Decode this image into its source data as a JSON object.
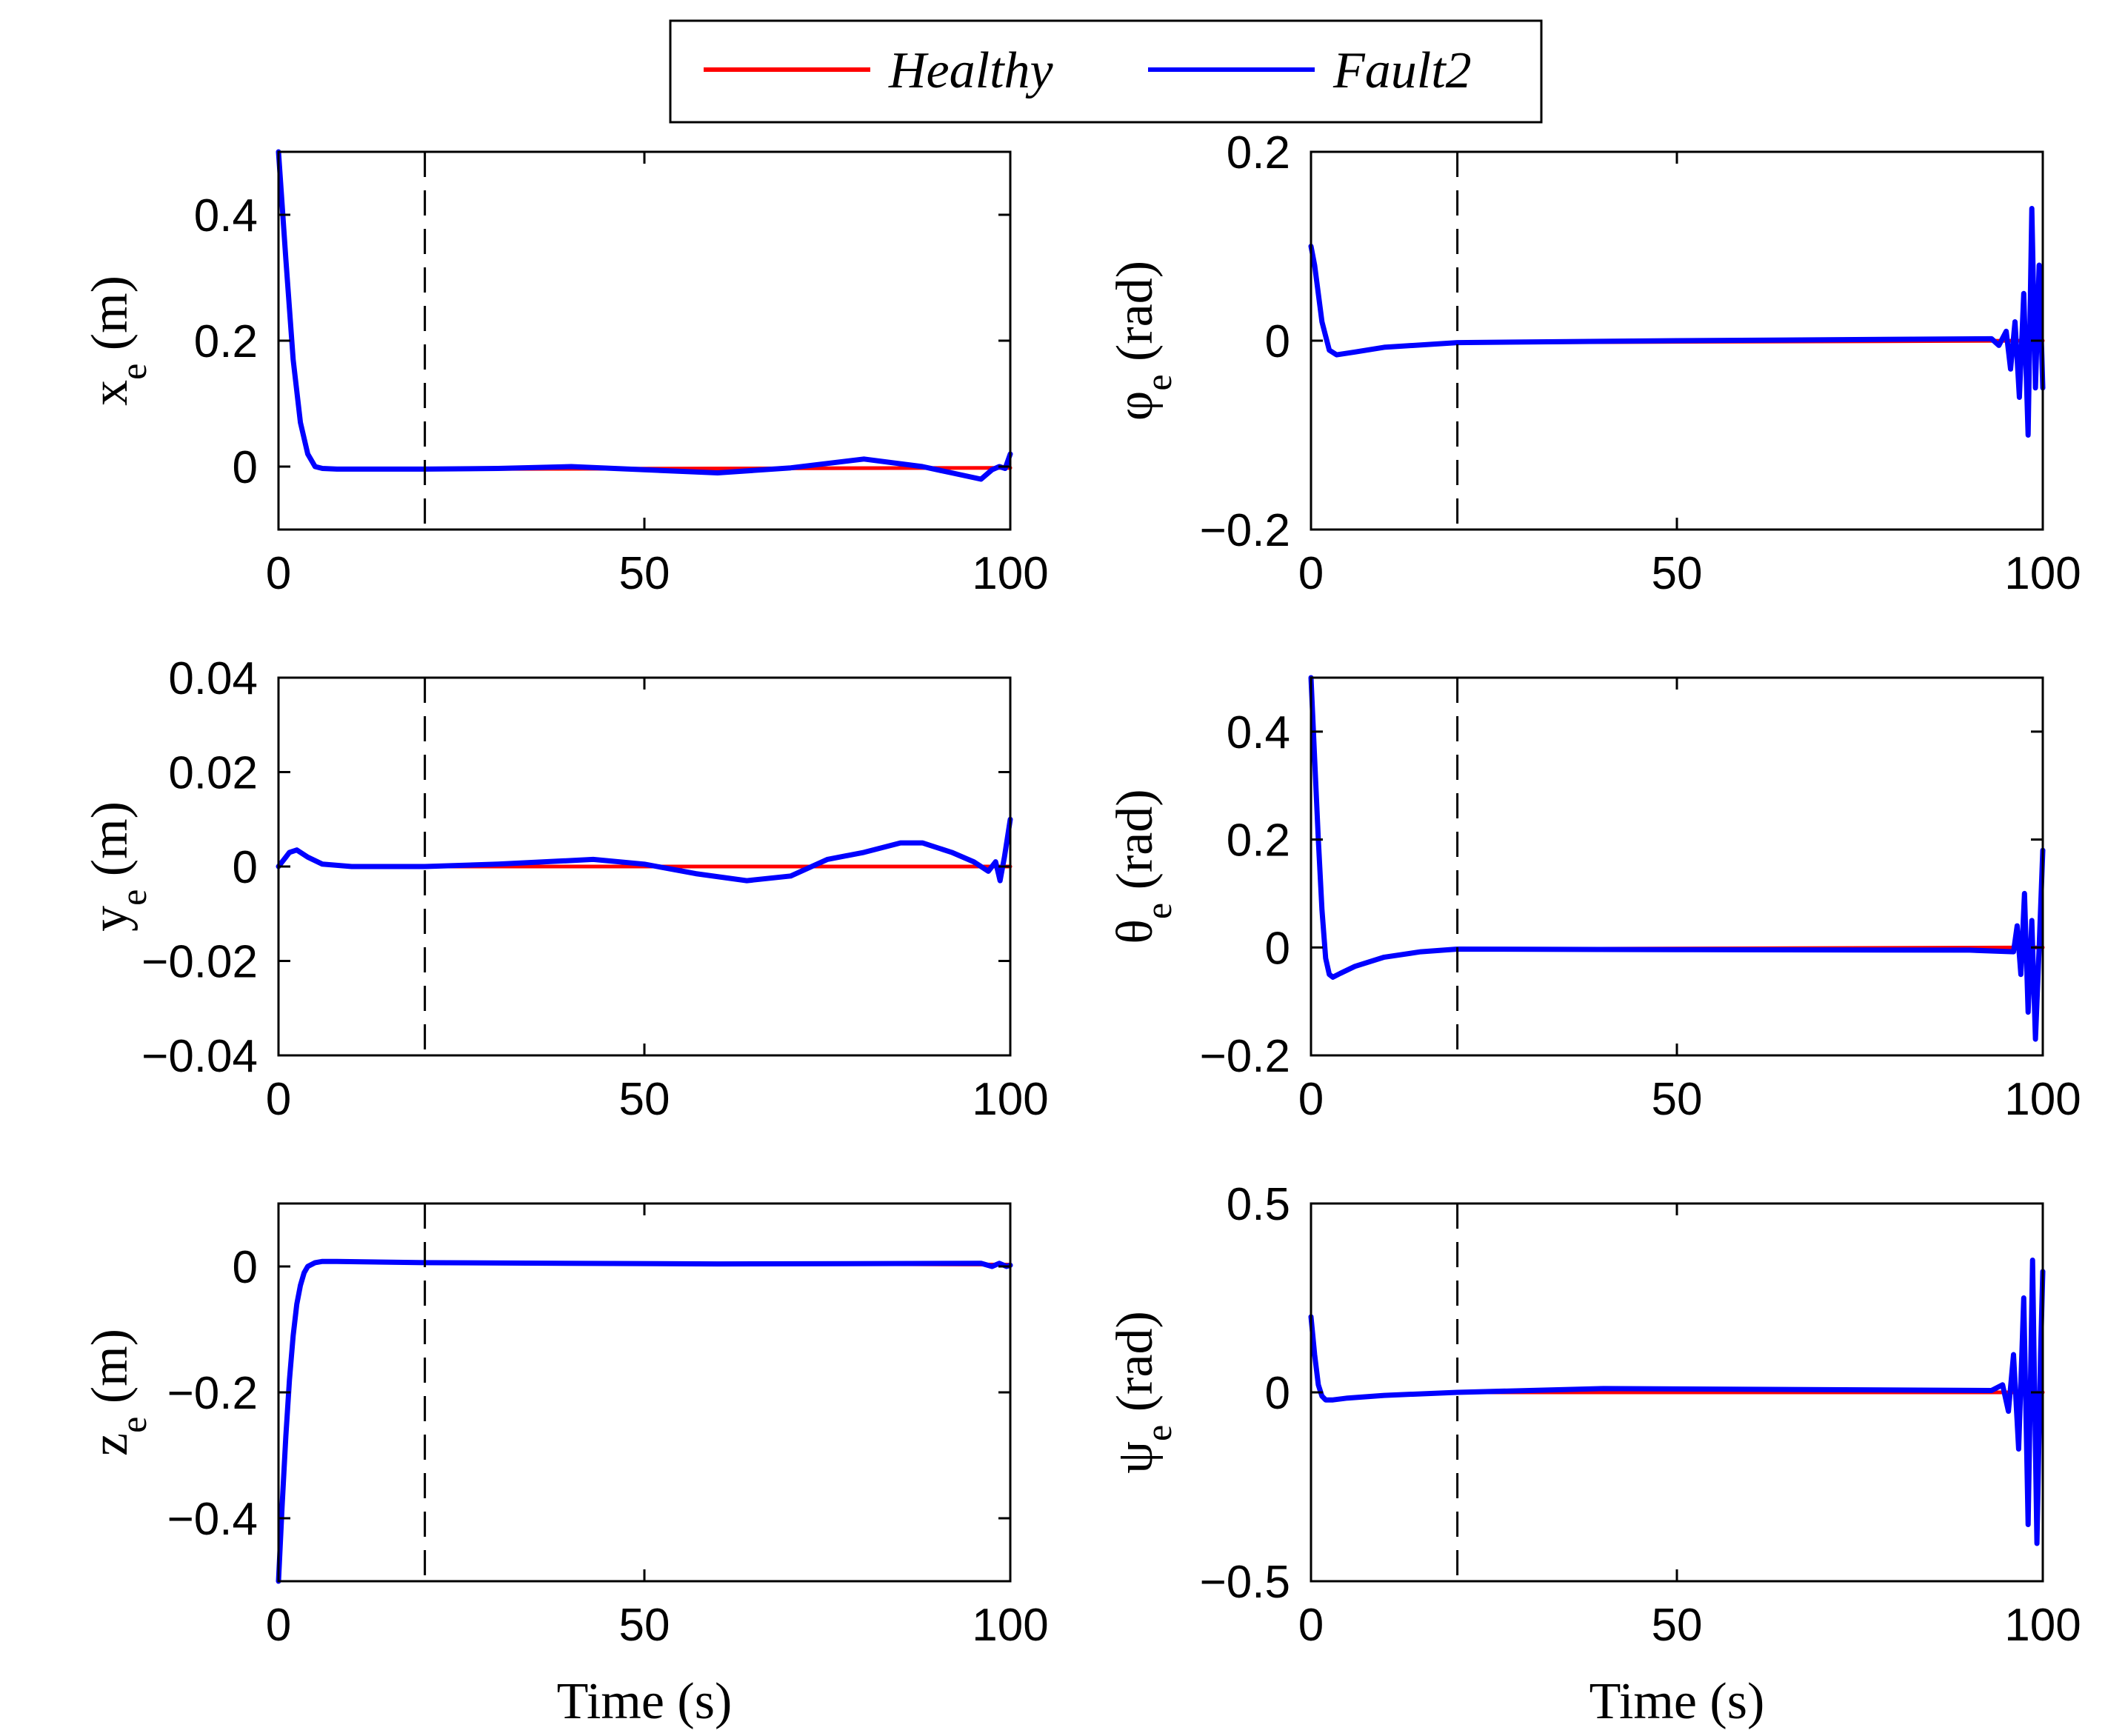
{
  "legend": {
    "entries": [
      {
        "label": "Healthy",
        "color": "#ff0000"
      },
      {
        "label": "Fault2",
        "color": "#0000ff"
      }
    ]
  },
  "chart_data": [
    {
      "id": "xe",
      "type": "line",
      "ylabel": "x",
      "ylabel_sub": "e",
      "ylabel_unit": " (m)",
      "xlabel": "",
      "xlim": [
        0,
        100
      ],
      "ylim": [
        -0.1,
        0.5
      ],
      "xticks": [
        0,
        50,
        100
      ],
      "xtick_labels": [
        "0",
        "50",
        "100"
      ],
      "yticks": [
        0,
        0.2,
        0.4
      ],
      "ytick_labels": [
        "0",
        "0.2",
        "0.4"
      ],
      "fault_time": 20,
      "series": [
        {
          "name": "Healthy",
          "color": "#ff0000",
          "x": [
            0,
            1,
            2,
            3,
            4,
            5,
            6,
            8,
            10,
            20,
            100
          ],
          "y": [
            0.5,
            0.33,
            0.17,
            0.07,
            0.02,
            0.0,
            -0.003,
            -0.004,
            -0.004,
            -0.004,
            -0.002
          ]
        },
        {
          "name": "Fault2",
          "color": "#0000ff",
          "x": [
            0,
            1,
            2,
            3,
            4,
            5,
            6,
            8,
            10,
            20,
            30,
            40,
            50,
            60,
            70,
            80,
            88,
            92,
            96,
            97.5,
            98.5,
            99.3,
            100
          ],
          "y": [
            0.5,
            0.33,
            0.17,
            0.07,
            0.02,
            0.0,
            -0.003,
            -0.004,
            -0.004,
            -0.004,
            -0.003,
            0.0,
            -0.005,
            -0.01,
            -0.002,
            0.012,
            0.0,
            -0.01,
            -0.02,
            -0.005,
            0.0,
            -0.003,
            0.02
          ]
        }
      ]
    },
    {
      "id": "phie",
      "type": "line",
      "ylabel": "φ",
      "ylabel_sub": "e",
      "ylabel_unit": " (rad)",
      "xlabel": "",
      "xlim": [
        0,
        100
      ],
      "ylim": [
        -0.2,
        0.2
      ],
      "xticks": [
        0,
        50,
        100
      ],
      "xtick_labels": [
        "0",
        "50",
        "100"
      ],
      "yticks": [
        -0.2,
        0,
        0.2
      ],
      "ytick_labels": [
        "−0.2",
        "0",
        "0.2"
      ],
      "fault_time": 20,
      "series": [
        {
          "name": "Healthy",
          "color": "#ff0000",
          "x": [
            0,
            0.5,
            1.5,
            2.5,
            3.5,
            6,
            10,
            20,
            100
          ],
          "y": [
            0.1,
            0.08,
            0.02,
            -0.01,
            -0.015,
            -0.012,
            -0.007,
            -0.002,
            0.0
          ]
        },
        {
          "name": "Fault2",
          "color": "#0000ff",
          "x": [
            0,
            0.5,
            1.5,
            2.5,
            3.5,
            6,
            10,
            20,
            50,
            93,
            94,
            95,
            95.6,
            96.2,
            96.8,
            97.4,
            98,
            98.5,
            99,
            99.5,
            100
          ],
          "y": [
            0.1,
            0.08,
            0.02,
            -0.01,
            -0.015,
            -0.012,
            -0.007,
            -0.002,
            0.0,
            0.002,
            -0.005,
            0.01,
            -0.03,
            0.02,
            -0.06,
            0.05,
            -0.1,
            0.14,
            -0.05,
            0.08,
            -0.05
          ]
        }
      ]
    },
    {
      "id": "ye",
      "type": "line",
      "ylabel": "y",
      "ylabel_sub": "e",
      "ylabel_unit": " (m)",
      "xlabel": "",
      "xlim": [
        0,
        100
      ],
      "ylim": [
        -0.04,
        0.04
      ],
      "xticks": [
        0,
        50,
        100
      ],
      "xtick_labels": [
        "0",
        "50",
        "100"
      ],
      "yticks": [
        -0.04,
        -0.02,
        0,
        0.02,
        0.04
      ],
      "ytick_labels": [
        "−0.04",
        "−0.02",
        "0",
        "0.02",
        "0.04"
      ],
      "fault_time": 20,
      "series": [
        {
          "name": "Healthy",
          "color": "#ff0000",
          "x": [
            0,
            1,
            1.5,
            2.5,
            4,
            6,
            10,
            20,
            100
          ],
          "y": [
            0.0,
            0.002,
            0.003,
            0.0035,
            0.002,
            0.0005,
            0.0,
            0.0,
            0.0
          ]
        },
        {
          "name": "Fault2",
          "color": "#0000ff",
          "x": [
            0,
            1,
            1.5,
            2.5,
            4,
            6,
            10,
            20,
            30,
            43,
            50,
            57,
            64,
            70,
            75,
            80,
            85,
            88,
            92,
            95,
            97,
            98,
            98.6,
            99.2,
            100
          ],
          "y": [
            0.0,
            0.002,
            0.003,
            0.0035,
            0.002,
            0.0005,
            0.0,
            0.0,
            0.0005,
            0.0015,
            0.0005,
            -0.0015,
            -0.003,
            -0.002,
            0.0015,
            0.003,
            0.005,
            0.005,
            0.003,
            0.001,
            -0.001,
            0.001,
            -0.003,
            0.002,
            0.01
          ]
        }
      ]
    },
    {
      "id": "thetae",
      "type": "line",
      "ylabel": "θ",
      "ylabel_sub": "e",
      "ylabel_unit": " (rad)",
      "xlabel": "",
      "xlim": [
        0,
        100
      ],
      "ylim": [
        -0.2,
        0.5
      ],
      "xticks": [
        0,
        50,
        100
      ],
      "xtick_labels": [
        "0",
        "50",
        "100"
      ],
      "yticks": [
        -0.2,
        0,
        0.2,
        0.4
      ],
      "ytick_labels": [
        "−0.2",
        "0",
        "0.2",
        "0.4"
      ],
      "fault_time": 20,
      "series": [
        {
          "name": "Healthy",
          "color": "#ff0000",
          "x": [
            0,
            0.5,
            1,
            1.5,
            2,
            2.5,
            3,
            4,
            6,
            10,
            15,
            20,
            100
          ],
          "y": [
            0.5,
            0.35,
            0.2,
            0.07,
            -0.02,
            -0.05,
            -0.055,
            -0.048,
            -0.035,
            -0.018,
            -0.008,
            -0.003,
            0.0
          ]
        },
        {
          "name": "Fault2",
          "color": "#0000ff",
          "x": [
            0,
            0.5,
            1,
            1.5,
            2,
            2.5,
            3,
            4,
            6,
            10,
            15,
            20,
            50,
            90,
            96,
            96.5,
            97,
            97.5,
            98,
            98.5,
            99,
            99.5,
            100
          ],
          "y": [
            0.5,
            0.35,
            0.2,
            0.07,
            -0.02,
            -0.05,
            -0.055,
            -0.048,
            -0.035,
            -0.018,
            -0.008,
            -0.003,
            -0.004,
            -0.005,
            -0.008,
            0.04,
            -0.05,
            0.1,
            -0.12,
            0.05,
            -0.17,
            0.0,
            0.18
          ]
        }
      ]
    },
    {
      "id": "ze",
      "type": "line",
      "ylabel": "z",
      "ylabel_sub": "e",
      "ylabel_unit": " (m)",
      "xlabel": "Time (s)",
      "xlim": [
        0,
        100
      ],
      "ylim": [
        -0.5,
        0.1
      ],
      "xticks": [
        0,
        50,
        100
      ],
      "xtick_labels": [
        "0",
        "50",
        "100"
      ],
      "yticks": [
        -0.4,
        -0.2,
        0
      ],
      "ytick_labels": [
        "−0.4",
        "−0.2",
        "0"
      ],
      "fault_time": 20,
      "series": [
        {
          "name": "Healthy",
          "color": "#ff0000",
          "x": [
            0,
            0.5,
            1,
            1.5,
            2,
            2.5,
            3,
            3.5,
            4,
            5,
            6,
            8,
            20,
            100
          ],
          "y": [
            -0.5,
            -0.38,
            -0.27,
            -0.18,
            -0.11,
            -0.06,
            -0.03,
            -0.01,
            0.0,
            0.006,
            0.008,
            0.008,
            0.006,
            0.003
          ]
        },
        {
          "name": "Fault2",
          "color": "#0000ff",
          "x": [
            0,
            0.5,
            1,
            1.5,
            2,
            2.5,
            3,
            3.5,
            4,
            5,
            6,
            8,
            20,
            60,
            96,
            97.5,
            98.5,
            99.5,
            100
          ],
          "y": [
            -0.5,
            -0.38,
            -0.27,
            -0.18,
            -0.11,
            -0.06,
            -0.03,
            -0.01,
            0.0,
            0.006,
            0.008,
            0.008,
            0.006,
            0.004,
            0.005,
            0.0,
            0.005,
            0.0,
            0.002
          ]
        }
      ]
    },
    {
      "id": "psie",
      "type": "line",
      "ylabel": "ψ",
      "ylabel_sub": "e",
      "ylabel_unit": " (rad)",
      "xlabel": "Time (s)",
      "xlim": [
        0,
        100
      ],
      "ylim": [
        -0.5,
        0.5
      ],
      "xticks": [
        0,
        50,
        100
      ],
      "xtick_labels": [
        "0",
        "50",
        "100"
      ],
      "yticks": [
        -0.5,
        0,
        0.5
      ],
      "ytick_labels": [
        "−0.5",
        "0",
        "0.5"
      ],
      "fault_time": 20,
      "series": [
        {
          "name": "Healthy",
          "color": "#ff0000",
          "x": [
            0,
            0.5,
            1,
            1.5,
            2,
            3,
            5,
            10,
            20,
            100
          ],
          "y": [
            0.2,
            0.1,
            0.02,
            -0.01,
            -0.02,
            -0.02,
            -0.015,
            -0.008,
            0.0,
            0.0
          ]
        },
        {
          "name": "Fault2",
          "color": "#0000ff",
          "x": [
            0,
            0.5,
            1,
            1.5,
            2,
            3,
            5,
            10,
            20,
            40,
            93,
            94.5,
            95.3,
            96,
            96.7,
            97.4,
            98,
            98.6,
            99.2,
            99.7,
            100
          ],
          "y": [
            0.2,
            0.1,
            0.02,
            -0.01,
            -0.02,
            -0.02,
            -0.015,
            -0.008,
            0.0,
            0.01,
            0.005,
            0.02,
            -0.05,
            0.1,
            -0.15,
            0.25,
            -0.35,
            0.35,
            -0.4,
            0.1,
            0.32
          ]
        }
      ]
    }
  ]
}
